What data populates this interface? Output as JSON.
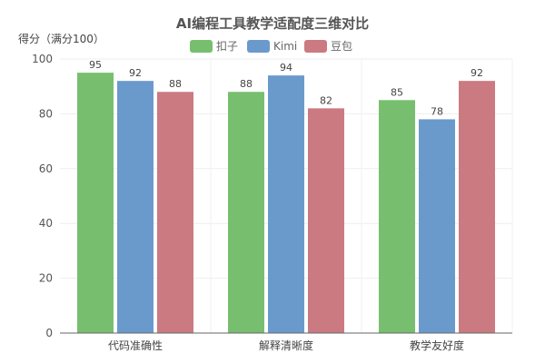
{
  "chart_data": {
    "type": "bar",
    "title": "AI编程工具教学适配度三维对比",
    "xlabel": "",
    "ylabel": "得分（满分100）",
    "ylim": [
      0,
      100
    ],
    "yticks": [
      0,
      20,
      40,
      60,
      80,
      100
    ],
    "grid": true,
    "legend_position": "top-center",
    "categories": [
      "代码准确性",
      "解释清晰度",
      "教学友好度"
    ],
    "series": [
      {
        "name": "扣子",
        "color": "#77bf6e",
        "values": [
          95,
          88,
          85
        ]
      },
      {
        "name": "Kimi",
        "color": "#6a9acc",
        "values": [
          92,
          94,
          78
        ]
      },
      {
        "name": "豆包",
        "color": "#cb7a82",
        "values": [
          88,
          82,
          92
        ]
      }
    ]
  }
}
